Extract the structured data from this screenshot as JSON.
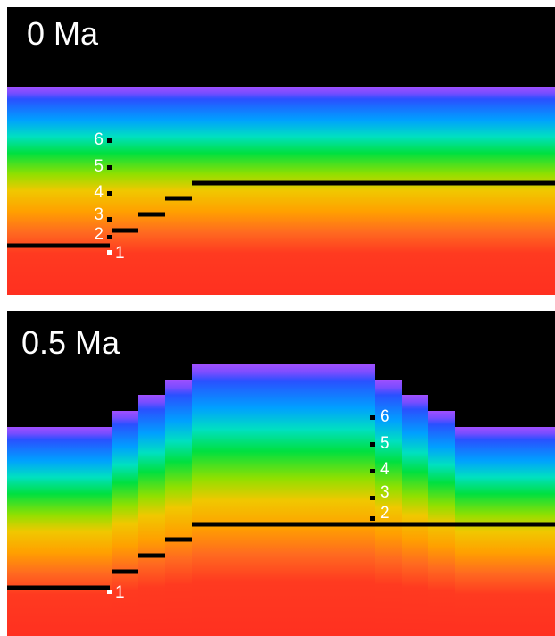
{
  "panels": [
    {
      "label": "0 Ma",
      "markers": [
        "1",
        "2",
        "3",
        "4",
        "5",
        "6"
      ]
    },
    {
      "label": "0.5 Ma",
      "markers": [
        "1",
        "2",
        "3",
        "4",
        "5",
        "6"
      ]
    }
  ]
}
